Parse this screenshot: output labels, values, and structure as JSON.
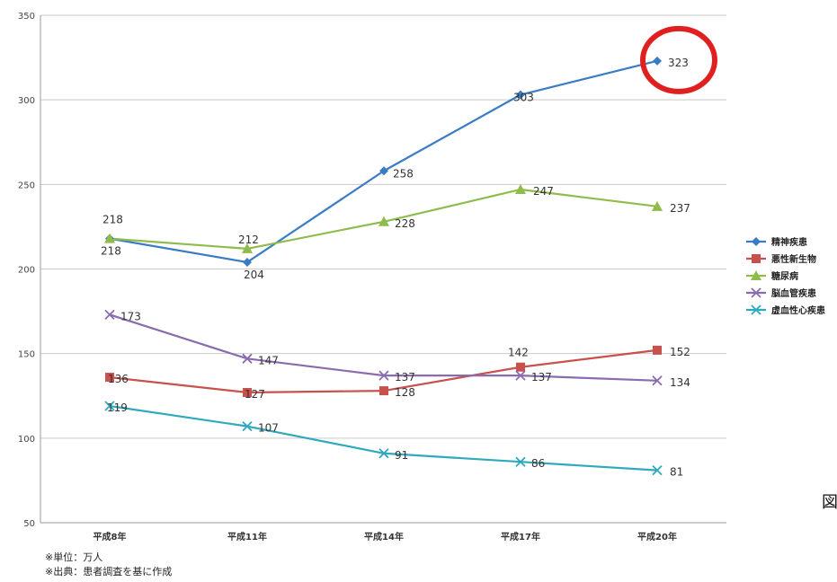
{
  "chart_data": {
    "type": "line",
    "categories": [
      "平成8年",
      "平成11年",
      "平成14年",
      "平成17年",
      "平成20年"
    ],
    "ylim": [
      50,
      350
    ],
    "yticks": [
      50,
      100,
      150,
      200,
      250,
      300,
      350
    ],
    "grid": true,
    "legend_position": "right",
    "series": [
      {
        "name": "精神疾患",
        "color": "#3a7cc4",
        "marker": "diamond",
        "values": [
          218,
          204,
          258,
          303,
          323
        ],
        "labels": [
          "218",
          "204",
          "258",
          "303",
          "323"
        ]
      },
      {
        "name": "悪性新生物",
        "color": "#c8504d",
        "marker": "square",
        "values": [
          136,
          127,
          128,
          142,
          152
        ],
        "labels": [
          "136",
          "127",
          "128",
          "142",
          "152"
        ]
      },
      {
        "name": "糖尿病",
        "color": "#8fbc4c",
        "marker": "triangle",
        "values": [
          218,
          212,
          228,
          247,
          237
        ],
        "labels": [
          "218",
          "212",
          "228",
          "247",
          "237"
        ]
      },
      {
        "name": "脳血管疾患",
        "color": "#8a6bb0",
        "marker": "x",
        "values": [
          173,
          147,
          137,
          137,
          134
        ],
        "labels": [
          "173",
          "147",
          "137",
          "137",
          "134"
        ]
      },
      {
        "name": "虚血性心疾患",
        "color": "#2ea9bd",
        "marker": "x",
        "values": [
          119,
          107,
          91,
          86,
          81
        ],
        "labels": [
          "119",
          "107",
          "91",
          "86",
          "81"
        ]
      }
    ],
    "highlight_color": "#e02020"
  },
  "notes": {
    "unit": "※単位：万人",
    "source": "※出典：患者調査を基に作成"
  },
  "side_char": "図"
}
